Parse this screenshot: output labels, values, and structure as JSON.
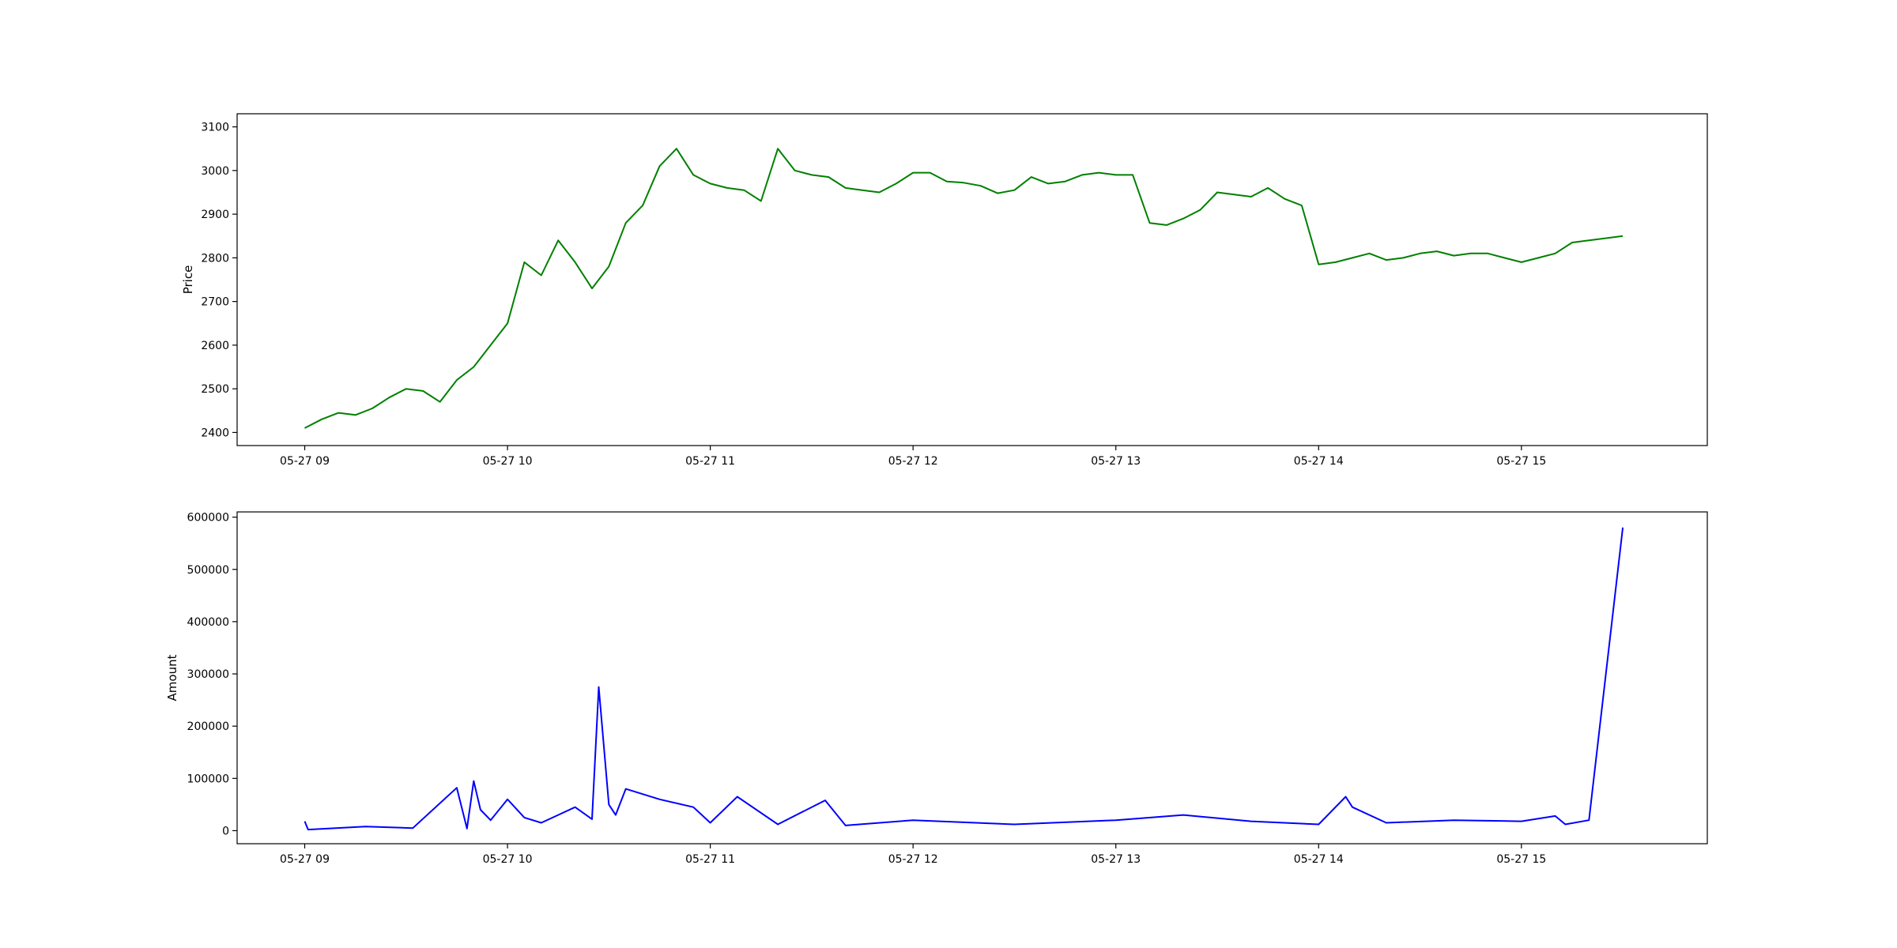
{
  "chart_data": [
    {
      "type": "line",
      "title": "",
      "xlabel": "",
      "ylabel": "Price",
      "ylim": [
        2370,
        3130
      ],
      "xlim": [
        "05-27 08:40",
        "05-27 15:55"
      ],
      "yticks": [
        2400,
        2500,
        2600,
        2700,
        2800,
        2900,
        3000,
        3100
      ],
      "xticks": [
        "05-27 09",
        "05-27 10",
        "05-27 11",
        "05-27 12",
        "05-27 13",
        "05-27 14",
        "05-27 15"
      ],
      "grid": false,
      "legend": "none",
      "series": [
        {
          "color": "#008000",
          "x": [
            "05-27 09:00",
            "05-27 09:05",
            "05-27 09:10",
            "05-27 09:15",
            "05-27 09:20",
            "05-27 09:25",
            "05-27 09:30",
            "05-27 09:35",
            "05-27 09:40",
            "05-27 09:45",
            "05-27 09:50",
            "05-27 09:55",
            "05-27 10:00",
            "05-27 10:05",
            "05-27 10:10",
            "05-27 10:15",
            "05-27 10:20",
            "05-27 10:25",
            "05-27 10:30",
            "05-27 10:35",
            "05-27 10:40",
            "05-27 10:45",
            "05-27 10:50",
            "05-27 10:55",
            "05-27 11:00",
            "05-27 11:05",
            "05-27 11:10",
            "05-27 11:15",
            "05-27 11:20",
            "05-27 11:25",
            "05-27 11:30",
            "05-27 11:35",
            "05-27 11:40",
            "05-27 11:45",
            "05-27 11:50",
            "05-27 11:55",
            "05-27 12:00",
            "05-27 12:05",
            "05-27 12:10",
            "05-27 12:15",
            "05-27 12:20",
            "05-27 12:25",
            "05-27 12:30",
            "05-27 12:35",
            "05-27 12:40",
            "05-27 12:45",
            "05-27 12:50",
            "05-27 12:55",
            "05-27 13:00",
            "05-27 13:05",
            "05-27 13:10",
            "05-27 13:15",
            "05-27 13:20",
            "05-27 13:25",
            "05-27 13:30",
            "05-27 13:35",
            "05-27 13:40",
            "05-27 13:45",
            "05-27 13:50",
            "05-27 13:55",
            "05-27 14:00",
            "05-27 14:05",
            "05-27 14:10",
            "05-27 14:15",
            "05-27 14:20",
            "05-27 14:25",
            "05-27 14:30",
            "05-27 14:35",
            "05-27 14:40",
            "05-27 14:45",
            "05-27 14:50",
            "05-27 14:55",
            "05-27 15:00",
            "05-27 15:05",
            "05-27 15:10",
            "05-27 15:15",
            "05-27 15:20",
            "05-27 15:30"
          ],
          "values": [
            2410,
            2430,
            2445,
            2440,
            2455,
            2480,
            2500,
            2495,
            2470,
            2520,
            2550,
            2600,
            2650,
            2790,
            2760,
            2840,
            2790,
            2730,
            2780,
            2880,
            2920,
            3010,
            3050,
            2990,
            2970,
            2960,
            2955,
            2930,
            3050,
            3000,
            2990,
            2985,
            2960,
            2955,
            2950,
            2970,
            2995,
            2995,
            2975,
            2972,
            2965,
            2948,
            2955,
            2985,
            2970,
            2975,
            2990,
            2995,
            2990,
            2990,
            2880,
            2875,
            2890,
            2910,
            2950,
            2945,
            2940,
            2960,
            2935,
            2920,
            2785,
            2790,
            2800,
            2810,
            2795,
            2800,
            2810,
            2815,
            2805,
            2810,
            2810,
            2800,
            2790,
            2800,
            2810,
            2835,
            2840,
            2850
          ]
        }
      ]
    },
    {
      "type": "line",
      "title": "",
      "xlabel": "",
      "ylabel": "Amount",
      "ylim": [
        -25000,
        610000
      ],
      "xlim": [
        "05-27 08:40",
        "05-27 15:55"
      ],
      "yticks": [
        0,
        100000,
        200000,
        300000,
        400000,
        500000,
        600000
      ],
      "xticks": [
        "05-27 09",
        "05-27 10",
        "05-27 11",
        "05-27 12",
        "05-27 13",
        "05-27 14",
        "05-27 15"
      ],
      "grid": false,
      "legend": "none",
      "series": [
        {
          "color": "#0000ff",
          "x": [
            "05-27 09:00",
            "05-27 09:01",
            "05-27 09:18",
            "05-27 09:32",
            "05-27 09:45",
            "05-27 09:48",
            "05-27 09:50",
            "05-27 09:52",
            "05-27 09:55",
            "05-27 10:00",
            "05-27 10:05",
            "05-27 10:10",
            "05-27 10:15",
            "05-27 10:20",
            "05-27 10:25",
            "05-27 10:27",
            "05-27 10:30",
            "05-27 10:32",
            "05-27 10:35",
            "05-27 10:45",
            "05-27 10:55",
            "05-27 11:00",
            "05-27 11:08",
            "05-27 11:20",
            "05-27 11:34",
            "05-27 11:40",
            "05-27 12:00",
            "05-27 12:30",
            "05-27 13:00",
            "05-27 13:20",
            "05-27 13:40",
            "05-27 14:00",
            "05-27 14:08",
            "05-27 14:10",
            "05-27 14:20",
            "05-27 14:40",
            "05-27 15:00",
            "05-27 15:10",
            "05-27 15:13",
            "05-27 15:20",
            "05-27 15:30"
          ],
          "values": [
            18000,
            2000,
            8000,
            5000,
            82000,
            4000,
            95000,
            40000,
            20000,
            60000,
            25000,
            15000,
            30000,
            45000,
            22000,
            275000,
            50000,
            30000,
            80000,
            60000,
            45000,
            15000,
            65000,
            12000,
            58000,
            10000,
            20000,
            12000,
            20000,
            30000,
            18000,
            12000,
            65000,
            45000,
            15000,
            20000,
            18000,
            28000,
            12000,
            20000,
            580000
          ]
        }
      ]
    }
  ]
}
